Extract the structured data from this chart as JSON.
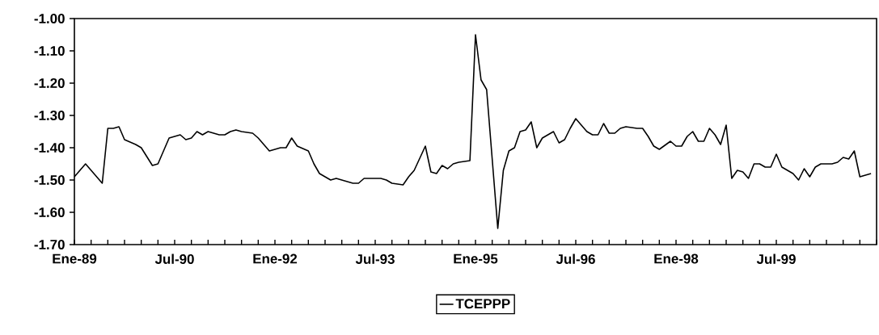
{
  "chart_data": {
    "type": "line",
    "x": [
      "1989-01",
      "1989-03",
      "1989-06",
      "1989-07",
      "1989-08",
      "1989-09",
      "1989-10",
      "1989-12",
      "1990-01",
      "1990-03",
      "1990-04",
      "1990-05",
      "1990-06",
      "1990-07",
      "1990-08",
      "1990-09",
      "1990-10",
      "1990-11",
      "1990-12",
      "1991-01",
      "1991-03",
      "1991-04",
      "1991-05",
      "1991-06",
      "1991-07",
      "1991-09",
      "1991-10",
      "1991-11",
      "1991-12",
      "1992-02",
      "1992-03",
      "1992-04",
      "1992-05",
      "1992-07",
      "1992-08",
      "1992-09",
      "1992-11",
      "1992-12",
      "1993-03",
      "1993-04",
      "1993-05",
      "1993-08",
      "1993-09",
      "1993-10",
      "1993-12",
      "1994-01",
      "1994-02",
      "1994-04",
      "1994-05",
      "1994-06",
      "1994-07",
      "1994-08",
      "1994-09",
      "1994-10",
      "1994-12",
      "1995-01",
      "1995-02",
      "1995-03",
      "1995-05",
      "1995-06",
      "1995-07",
      "1995-08",
      "1995-09",
      "1995-10",
      "1995-11",
      "1995-12",
      "1996-01",
      "1996-02",
      "1996-03",
      "1996-04",
      "1996-05",
      "1996-06",
      "1996-07",
      "1996-09",
      "1996-10",
      "1996-11",
      "1996-12",
      "1997-01",
      "1997-02",
      "1997-03",
      "1997-04",
      "1997-06",
      "1997-07",
      "1997-08",
      "1997-09",
      "1997-10",
      "1997-12",
      "1998-01",
      "1998-02",
      "1998-03",
      "1998-04",
      "1998-05",
      "1998-06",
      "1998-07",
      "1998-08",
      "1998-09",
      "1998-10",
      "1998-11",
      "1998-12",
      "1999-01",
      "1999-02",
      "1999-03",
      "1999-04",
      "1999-05",
      "1999-06",
      "1999-07",
      "1999-08",
      "1999-10",
      "1999-11",
      "1999-12",
      "2000-01",
      "2000-02",
      "2000-03",
      "2000-05",
      "2000-06",
      "2000-07",
      "2000-08",
      "2000-09",
      "2000-10",
      "2000-12"
    ],
    "series": [
      {
        "name": "TCEPPP",
        "color": "#000000",
        "values": [
          -1.49,
          -1.45,
          -1.51,
          -1.34,
          -1.34,
          -1.335,
          -1.375,
          -1.39,
          -1.4,
          -1.455,
          -1.45,
          -1.41,
          -1.37,
          -1.365,
          -1.36,
          -1.375,
          -1.37,
          -1.35,
          -1.36,
          -1.35,
          -1.36,
          -1.36,
          -1.35,
          -1.345,
          -1.35,
          -1.355,
          -1.37,
          -1.39,
          -1.41,
          -1.4,
          -1.4,
          -1.37,
          -1.395,
          -1.41,
          -1.45,
          -1.48,
          -1.5,
          -1.495,
          -1.51,
          -1.51,
          -1.495,
          -1.495,
          -1.5,
          -1.51,
          -1.515,
          -1.49,
          -1.47,
          -1.395,
          -1.475,
          -1.48,
          -1.455,
          -1.465,
          -1.45,
          -1.445,
          -1.44,
          -1.05,
          -1.19,
          -1.22,
          -1.65,
          -1.47,
          -1.41,
          -1.4,
          -1.35,
          -1.345,
          -1.32,
          -1.4,
          -1.37,
          -1.36,
          -1.35,
          -1.385,
          -1.375,
          -1.34,
          -1.31,
          -1.35,
          -1.36,
          -1.36,
          -1.325,
          -1.355,
          -1.355,
          -1.34,
          -1.335,
          -1.34,
          -1.34,
          -1.365,
          -1.395,
          -1.405,
          -1.38,
          -1.395,
          -1.395,
          -1.365,
          -1.35,
          -1.38,
          -1.38,
          -1.34,
          -1.36,
          -1.39,
          -1.33,
          -1.495,
          -1.47,
          -1.475,
          -1.495,
          -1.45,
          -1.45,
          -1.46,
          -1.46,
          -1.42,
          -1.46,
          -1.48,
          -1.5,
          -1.465,
          -1.49,
          -1.46,
          -1.45,
          -1.45,
          -1.445,
          -1.43,
          -1.435,
          -1.41,
          -1.49,
          -1.48
        ]
      }
    ],
    "xlim": [
      "1989-01",
      "2001-01"
    ],
    "xticks": [
      {
        "value": "1989-01",
        "label": "Ene-89"
      },
      {
        "value": "1989-04",
        "label": null
      },
      {
        "value": "1989-07",
        "label": null
      },
      {
        "value": "1989-10",
        "label": null
      },
      {
        "value": "1990-01",
        "label": null
      },
      {
        "value": "1990-04",
        "label": null
      },
      {
        "value": "1990-07",
        "label": "Jul-90"
      },
      {
        "value": "1990-10",
        "label": null
      },
      {
        "value": "1991-01",
        "label": null
      },
      {
        "value": "1991-04",
        "label": null
      },
      {
        "value": "1991-07",
        "label": null
      },
      {
        "value": "1991-10",
        "label": null
      },
      {
        "value": "1992-01",
        "label": "Ene-92"
      },
      {
        "value": "1992-04",
        "label": null
      },
      {
        "value": "1992-07",
        "label": null
      },
      {
        "value": "1992-10",
        "label": null
      },
      {
        "value": "1993-01",
        "label": null
      },
      {
        "value": "1993-04",
        "label": null
      },
      {
        "value": "1993-07",
        "label": "Jul-93"
      },
      {
        "value": "1993-10",
        "label": null
      },
      {
        "value": "1994-01",
        "label": null
      },
      {
        "value": "1994-04",
        "label": null
      },
      {
        "value": "1994-07",
        "label": null
      },
      {
        "value": "1994-10",
        "label": null
      },
      {
        "value": "1995-01",
        "label": "Ene-95"
      },
      {
        "value": "1995-04",
        "label": null
      },
      {
        "value": "1995-07",
        "label": null
      },
      {
        "value": "1995-10",
        "label": null
      },
      {
        "value": "1996-01",
        "label": null
      },
      {
        "value": "1996-04",
        "label": null
      },
      {
        "value": "1996-07",
        "label": "Jul-96"
      },
      {
        "value": "1996-10",
        "label": null
      },
      {
        "value": "1997-01",
        "label": null
      },
      {
        "value": "1997-04",
        "label": null
      },
      {
        "value": "1997-07",
        "label": null
      },
      {
        "value": "1997-10",
        "label": null
      },
      {
        "value": "1998-01",
        "label": "Ene-98"
      },
      {
        "value": "1998-04",
        "label": null
      },
      {
        "value": "1998-07",
        "label": null
      },
      {
        "value": "1998-10",
        "label": null
      },
      {
        "value": "1999-01",
        "label": null
      },
      {
        "value": "1999-04",
        "label": null
      },
      {
        "value": "1999-07",
        "label": "Jul-99"
      },
      {
        "value": "1999-10",
        "label": null
      },
      {
        "value": "2000-01",
        "label": null
      },
      {
        "value": "2000-04",
        "label": null
      },
      {
        "value": "2000-07",
        "label": null
      },
      {
        "value": "2000-10",
        "label": null
      },
      {
        "value": "2001-01",
        "label": null
      }
    ],
    "ylim": [
      -1.7,
      -1.0
    ],
    "yticks": [
      {
        "value": -1.7,
        "label": "-1.70"
      },
      {
        "value": -1.6,
        "label": "-1.60"
      },
      {
        "value": -1.5,
        "label": "-1.50"
      },
      {
        "value": -1.4,
        "label": "-1.40"
      },
      {
        "value": -1.3,
        "label": "-1.30"
      },
      {
        "value": -1.2,
        "label": "-1.20"
      },
      {
        "value": -1.1,
        "label": "-1.10"
      },
      {
        "value": -1.0,
        "label": "-1.00"
      }
    ],
    "legend": "bottom"
  }
}
